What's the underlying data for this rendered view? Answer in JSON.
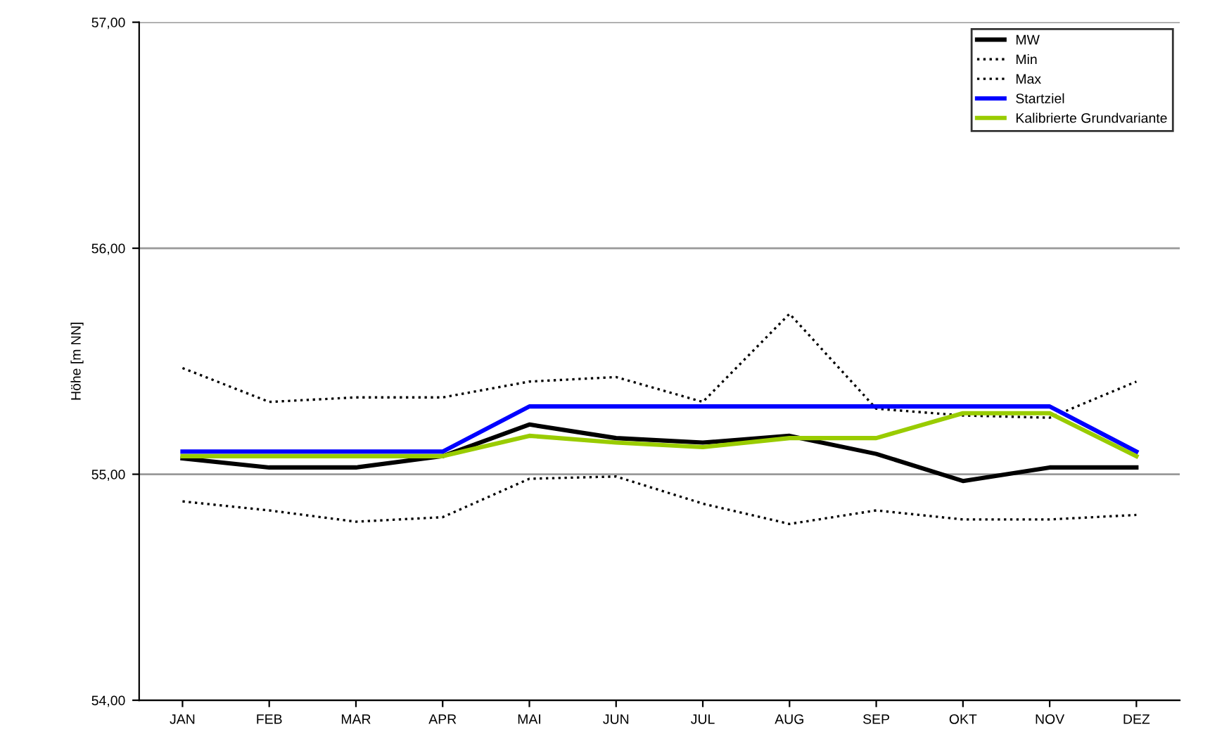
{
  "chart_data": {
    "type": "line",
    "ylabel": "Höhe [m NN]",
    "categories": [
      "JAN",
      "FEB",
      "MAR",
      "APR",
      "MAI",
      "JUN",
      "JUL",
      "AUG",
      "SEP",
      "OKT",
      "NOV",
      "DEZ"
    ],
    "series": [
      {
        "name": "MW",
        "color": "#000000",
        "line_style": "solid",
        "values": [
          55.07,
          55.03,
          55.03,
          55.08,
          55.22,
          55.16,
          55.14,
          55.17,
          55.09,
          54.97,
          55.03,
          55.03
        ]
      },
      {
        "name": "Min",
        "color": "#000000",
        "line_style": "dotted",
        "values": [
          54.88,
          54.84,
          54.79,
          54.81,
          54.98,
          54.99,
          54.87,
          54.78,
          54.84,
          54.8,
          54.8,
          54.82
        ]
      },
      {
        "name": "Max",
        "color": "#000000",
        "line_style": "dotted",
        "values": [
          55.47,
          55.32,
          55.34,
          55.34,
          55.41,
          55.43,
          55.32,
          55.71,
          55.29,
          55.26,
          55.25,
          55.41
        ]
      },
      {
        "name": "Startziel",
        "color": "#0000ff",
        "line_style": "solid",
        "values": [
          55.1,
          55.1,
          55.1,
          55.1,
          55.3,
          55.3,
          55.3,
          55.3,
          55.3,
          55.3,
          55.3,
          55.1
        ]
      },
      {
        "name": "Kalibrierte Grundvariante",
        "color": "#99cc00",
        "line_style": "solid",
        "values": [
          55.08,
          55.08,
          55.08,
          55.08,
          55.17,
          55.14,
          55.12,
          55.16,
          55.16,
          55.27,
          55.27,
          55.08
        ]
      }
    ],
    "ylim": [
      54,
      57
    ],
    "yticks": [
      {
        "value": 54,
        "label": "54,00"
      },
      {
        "value": 55,
        "label": "55,00"
      },
      {
        "value": 56,
        "label": "56,00"
      },
      {
        "value": 57,
        "label": "57,00"
      }
    ],
    "grid": "y",
    "legend": "top right",
    "marker": "none"
  }
}
